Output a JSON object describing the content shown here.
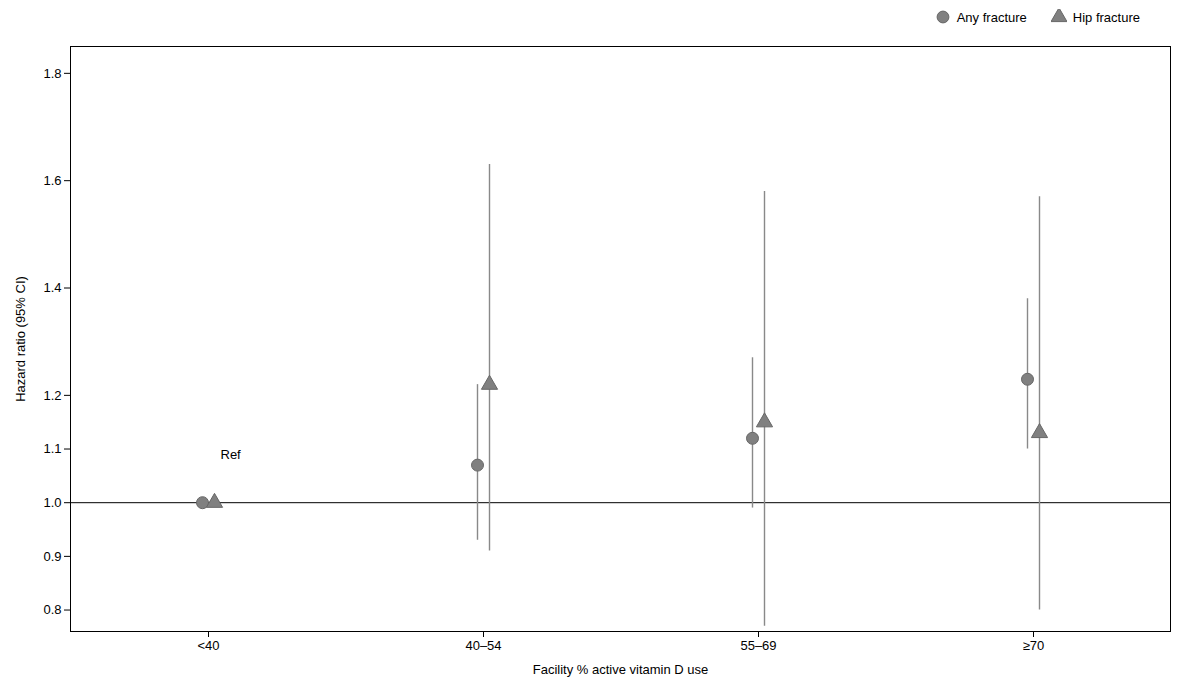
{
  "chart_data": {
    "type": "scatter",
    "xlabel": "Facility % active vitamin D use",
    "ylabel": "Hazard ratio (95% CI)",
    "categories": [
      "<40",
      "40–54",
      "55–69",
      "≥70"
    ],
    "series": [
      {
        "name": "Any fracture",
        "marker": "circle",
        "color": "#808080",
        "values": [
          1.0,
          1.07,
          1.12,
          1.23
        ],
        "ci_low": [
          1.0,
          0.93,
          0.99,
          1.1
        ],
        "ci_high": [
          1.0,
          1.22,
          1.27,
          1.38
        ]
      },
      {
        "name": "Hip fracture",
        "marker": "triangle",
        "color": "#808080",
        "values": [
          1.0,
          1.22,
          1.15,
          1.13
        ],
        "ci_low": [
          1.0,
          0.91,
          0.77,
          0.8
        ],
        "ci_high": [
          1.0,
          1.63,
          1.58,
          1.57
        ]
      }
    ],
    "hline": 1.0,
    "annotations": [
      {
        "text": "Ref",
        "x": "<40",
        "y": 1.09
      }
    ],
    "ylim": [
      0.76,
      1.85
    ],
    "yticks": [
      0.8,
      0.9,
      {
        "value": 1.0,
        "label": "1.0"
      },
      1.1,
      1.2,
      1.4,
      1.6,
      1.8
    ],
    "legend": "upper right",
    "grid": false
  }
}
